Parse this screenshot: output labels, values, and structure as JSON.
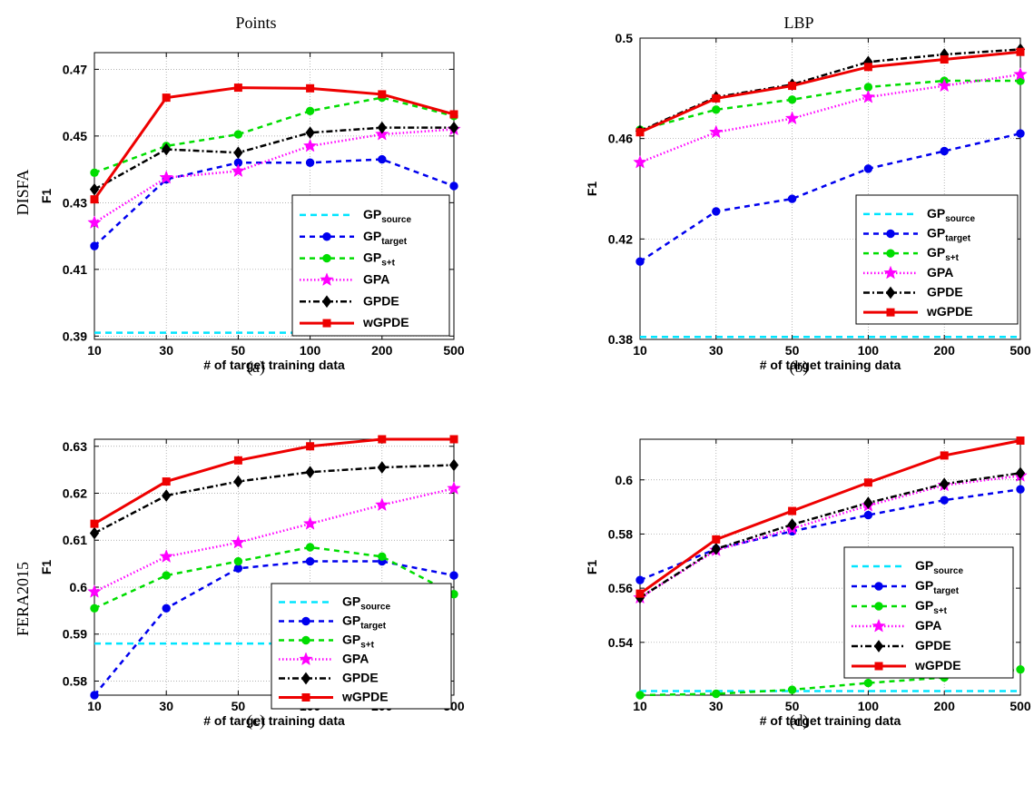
{
  "columns": [
    "Points",
    "LBP"
  ],
  "rows": [
    "DISFA",
    "FERA2015"
  ],
  "legend_labels": [
    {
      "base": "GP",
      "sub": "source"
    },
    {
      "base": "GP",
      "sub": "target"
    },
    {
      "base": "GP",
      "sub": "s+t"
    },
    {
      "base": "GPA",
      "sub": ""
    },
    {
      "base": "GPDE",
      "sub": ""
    },
    {
      "base": "wGPDE",
      "sub": ""
    }
  ],
  "series_styles": [
    {
      "color": "#00e5ff",
      "dash": "7,5",
      "marker": "none"
    },
    {
      "color": "#0000ee",
      "dash": "6,5",
      "marker": "circle"
    },
    {
      "color": "#00dd00",
      "dash": "6,5",
      "marker": "circle"
    },
    {
      "color": "#ff00ff",
      "dash": "1.5,2.5",
      "marker": "star"
    },
    {
      "color": "#000000",
      "dash": "7,3,2,3",
      "marker": "diamond"
    },
    {
      "color": "#ee0000",
      "dash": "",
      "marker": "square"
    }
  ],
  "chart_data": [
    {
      "type": "line",
      "caption": "(a)",
      "xlabel": "# of target training data",
      "ylabel": "F1",
      "categories": [
        "10",
        "30",
        "50",
        "100",
        "200",
        "500"
      ],
      "ylim": [
        0.389,
        0.475
      ],
      "yticks": [
        "0.39",
        "0.41",
        "0.43",
        "0.45",
        "0.47"
      ],
      "grid": true,
      "legend_position": "bottom-right",
      "series": [
        {
          "name": "GPsource",
          "values": [
            0.391,
            0.391,
            0.391,
            0.391,
            0.391,
            0.391
          ]
        },
        {
          "name": "GPtarget",
          "values": [
            0.417,
            0.437,
            0.442,
            0.442,
            0.443,
            0.435
          ]
        },
        {
          "name": "GPs+t",
          "values": [
            0.439,
            0.447,
            0.4505,
            0.4575,
            0.4615,
            0.456
          ]
        },
        {
          "name": "GPA",
          "values": [
            0.424,
            0.4375,
            0.4395,
            0.447,
            0.4505,
            0.452
          ]
        },
        {
          "name": "GPDE",
          "values": [
            0.434,
            0.446,
            0.445,
            0.451,
            0.4525,
            0.4525
          ]
        },
        {
          "name": "wGPDE",
          "values": [
            0.431,
            0.4615,
            0.4645,
            0.4643,
            0.4625,
            0.4565
          ]
        }
      ]
    },
    {
      "type": "line",
      "caption": "(b)",
      "xlabel": "# of target training data",
      "ylabel": "F1",
      "categories": [
        "10",
        "30",
        "50",
        "100",
        "200",
        "500"
      ],
      "ylim": [
        0.38,
        0.5
      ],
      "yticks": [
        "0.38",
        "0.42",
        "0.46",
        "0.5"
      ],
      "grid": true,
      "legend_position": "bottom-right",
      "series": [
        {
          "name": "GPsource",
          "values": [
            0.381,
            0.381,
            0.381,
            0.381,
            0.381,
            0.381
          ]
        },
        {
          "name": "GPtarget",
          "values": [
            0.411,
            0.431,
            0.436,
            0.448,
            0.455,
            0.462
          ]
        },
        {
          "name": "GPs+t",
          "values": [
            0.4635,
            0.4715,
            0.4755,
            0.4805,
            0.483,
            0.483
          ]
        },
        {
          "name": "GPA",
          "values": [
            0.4505,
            0.4625,
            0.468,
            0.4765,
            0.481,
            0.4855
          ]
        },
        {
          "name": "GPDE",
          "values": [
            0.463,
            0.4765,
            0.4815,
            0.4905,
            0.4935,
            0.4955
          ]
        },
        {
          "name": "wGPDE",
          "values": [
            0.4625,
            0.476,
            0.481,
            0.4885,
            0.4915,
            0.4945
          ]
        }
      ]
    },
    {
      "type": "line",
      "caption": "(c)",
      "xlabel": "# of target training data",
      "ylabel": "F1",
      "categories": [
        "10",
        "30",
        "50",
        "100",
        "200",
        "500"
      ],
      "ylim": [
        0.577,
        0.6315
      ],
      "yticks": [
        "0.58",
        "0.59",
        "0.6",
        "0.61",
        "0.62",
        "0.63"
      ],
      "grid": true,
      "legend_position": "bottom-right",
      "series": [
        {
          "name": "GPsource",
          "values": [
            0.588,
            0.588,
            0.588,
            0.588,
            0.588,
            0.588
          ]
        },
        {
          "name": "GPtarget",
          "values": [
            0.577,
            0.5955,
            0.604,
            0.6055,
            0.6055,
            0.6025
          ]
        },
        {
          "name": "GPs+t",
          "values": [
            0.5955,
            0.6025,
            0.6055,
            0.6085,
            0.6065,
            0.5985
          ]
        },
        {
          "name": "GPA",
          "values": [
            0.599,
            0.6065,
            0.6095,
            0.6135,
            0.6175,
            0.621
          ]
        },
        {
          "name": "GPDE",
          "values": [
            0.6115,
            0.6195,
            0.6225,
            0.6245,
            0.6255,
            0.626
          ]
        },
        {
          "name": "wGPDE",
          "values": [
            0.6135,
            0.6225,
            0.627,
            0.63,
            0.6315,
            0.6315
          ]
        }
      ]
    },
    {
      "type": "line",
      "caption": "(d)",
      "xlabel": "# of target training data",
      "ylabel": "F1",
      "categories": [
        "10",
        "30",
        "50",
        "100",
        "200",
        "500"
      ],
      "ylim": [
        0.5205,
        0.615
      ],
      "yticks": [
        "0.54",
        "0.56",
        "0.58",
        "0.6"
      ],
      "grid": true,
      "legend_position": "center-right",
      "series": [
        {
          "name": "GPsource",
          "values": [
            0.522,
            0.522,
            0.522,
            0.522,
            0.522,
            0.522
          ]
        },
        {
          "name": "GPtarget",
          "values": [
            0.563,
            0.5745,
            0.581,
            0.587,
            0.5925,
            0.5965
          ]
        },
        {
          "name": "GPs+t",
          "values": [
            0.5205,
            0.521,
            0.5225,
            0.525,
            0.527,
            0.53
          ]
        },
        {
          "name": "GPA",
          "values": [
            0.5565,
            0.574,
            0.582,
            0.5905,
            0.598,
            0.6015
          ]
        },
        {
          "name": "GPDE",
          "values": [
            0.5565,
            0.5745,
            0.5835,
            0.5915,
            0.5985,
            0.6025
          ]
        },
        {
          "name": "wGPDE",
          "values": [
            0.558,
            0.578,
            0.5885,
            0.599,
            0.609,
            0.6145
          ]
        }
      ]
    }
  ]
}
